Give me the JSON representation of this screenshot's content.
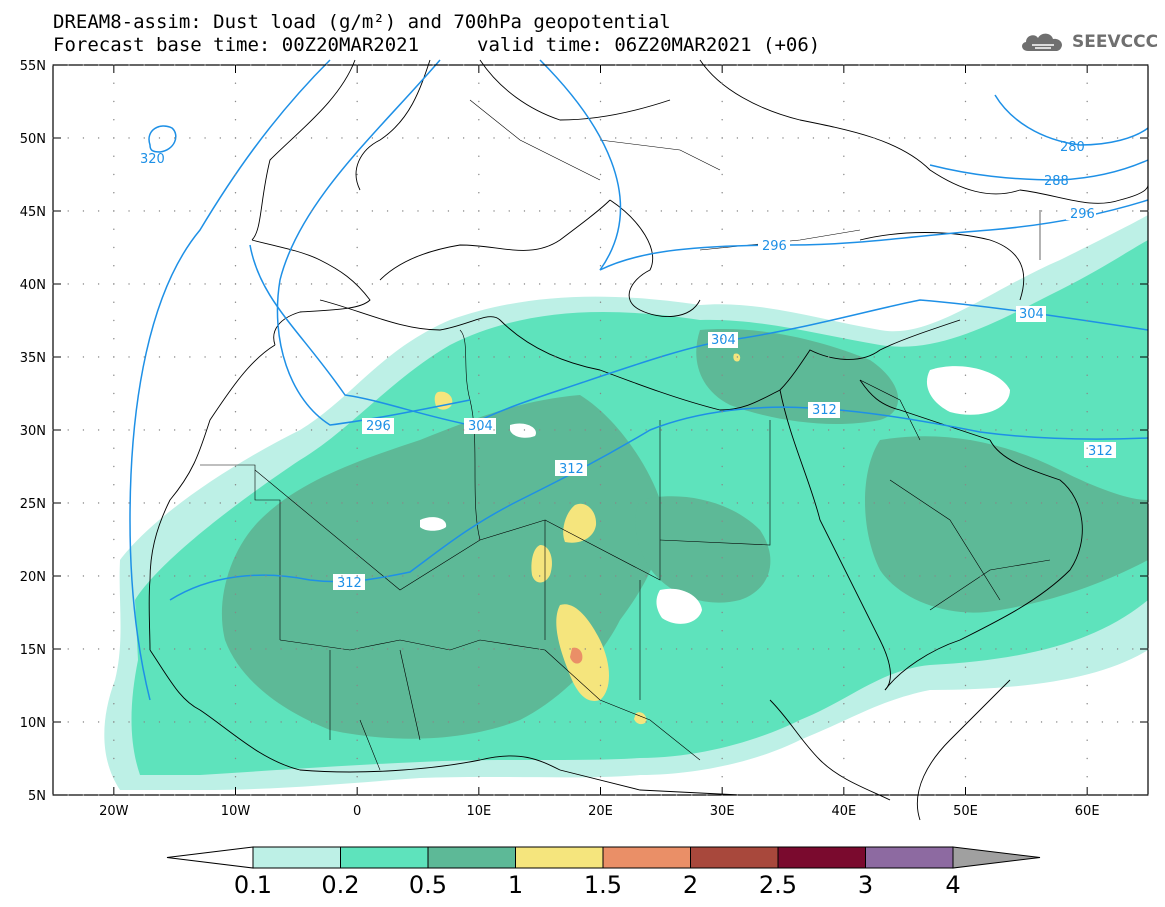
{
  "header": {
    "title_line1": "DREAM8-assim: Dust load (g/m²) and 700hPa geopotential",
    "title_line2_base": "Forecast base time: 00Z20MAR2021",
    "title_line2_valid": "valid time: 06Z20MAR2021 (+06)"
  },
  "logo": {
    "text": "SEEVCCC",
    "icon": "cloud-logo-icon"
  },
  "axes": {
    "lat_labels": [
      "55N",
      "50N",
      "45N",
      "40N",
      "35N",
      "30N",
      "25N",
      "20N",
      "15N",
      "10N",
      "5N"
    ],
    "lon_labels": [
      "20W",
      "10W",
      "0",
      "10E",
      "20E",
      "30E",
      "40E",
      "50E",
      "60E"
    ]
  },
  "contours": {
    "color": "#1e90e6",
    "labels": [
      "320",
      "280",
      "288",
      "296",
      "296",
      "304",
      "296",
      "304",
      "312",
      "312",
      "312",
      "312"
    ]
  },
  "colorbar": {
    "levels": [
      "0.1",
      "0.2",
      "0.5",
      "1",
      "1.5",
      "2",
      "2.5",
      "3",
      "4"
    ],
    "colors": [
      "#bdf0e6",
      "#5ee3bc",
      "#5db997",
      "#f5e57d",
      "#ea8f67",
      "#a8483c",
      "#7a0a2e",
      "#8d6aa1",
      "#a0a0a0"
    ]
  },
  "dust_colors": {
    "light": "#bdf0e6",
    "mid": "#5ee3bc",
    "dark": "#5db997",
    "yellow": "#f5e57d",
    "orange": "#ea8f67"
  }
}
